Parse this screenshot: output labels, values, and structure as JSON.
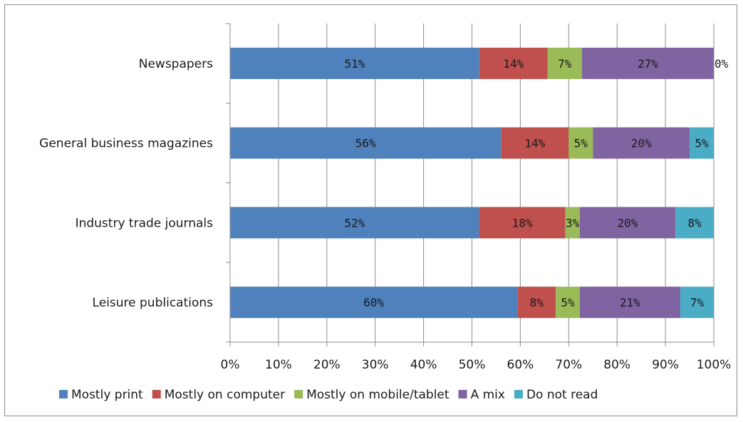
{
  "chart_data": {
    "type": "bar",
    "orientation": "horizontal",
    "stacked": "percent",
    "categories": [
      "Newspapers",
      "General business magazines",
      "Industry trade journals",
      "Leisure publications"
    ],
    "series": [
      {
        "name": "Mostly print",
        "values": [
          51,
          56,
          52,
          60
        ],
        "labels": [
          "51%",
          "56%",
          "52%",
          "60%"
        ],
        "color": "#4f81bd"
      },
      {
        "name": "Mostly on computer",
        "values": [
          14,
          14,
          18,
          8
        ],
        "labels": [
          "14%",
          "14%",
          "18%",
          "8%"
        ],
        "color": "#c0504d"
      },
      {
        "name": "Mostly on mobile/tablet",
        "values": [
          7,
          5,
          3,
          5
        ],
        "labels": [
          "7%",
          "5%",
          "3%",
          "5%"
        ],
        "color": "#9bbb59"
      },
      {
        "name": "A mix",
        "values": [
          27,
          20,
          20,
          21
        ],
        "labels": [
          "27%",
          "20%",
          "20%",
          "21%"
        ],
        "color": "#8064a2"
      },
      {
        "name": "Do not read",
        "values": [
          0,
          5,
          8,
          7
        ],
        "labels": [
          "0%",
          "5%",
          "8%",
          "7%"
        ],
        "color": "#4bacc6"
      }
    ],
    "x_ticks": [
      "0%",
      "10%",
      "20%",
      "30%",
      "40%",
      "50%",
      "60%",
      "70%",
      "80%",
      "90%",
      "100%"
    ],
    "xlim": [
      0,
      100
    ],
    "grid": "vertical",
    "legend_position": "bottom",
    "title": "",
    "xlabel": "",
    "ylabel": ""
  }
}
